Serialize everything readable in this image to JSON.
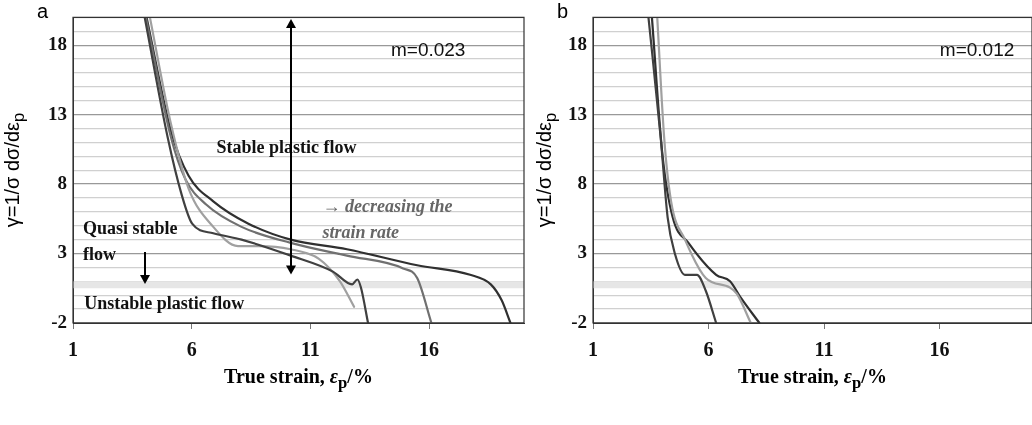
{
  "chart_data": [
    {
      "type": "line",
      "title": "a",
      "xlabel": "True strain, ε$_{p}$/%",
      "ylabel": "γ=1/σ dσ/dε$_{p}$",
      "xlim": [
        1,
        20
      ],
      "xticks": [
        1,
        6,
        11,
        16
      ],
      "ylim": [
        -2,
        20
      ],
      "yticks": [
        -2,
        {
          "value": -1,
          "label": null
        },
        {
          "value": 0,
          "label": null
        },
        {
          "value": 1,
          "label": null
        },
        {
          "value": 2,
          "label": null
        },
        3,
        {
          "value": 4,
          "label": null
        },
        {
          "value": 5,
          "label": null
        },
        {
          "value": 6,
          "label": null
        },
        {
          "value": 7,
          "label": null
        },
        8,
        {
          "value": 9,
          "label": null
        },
        {
          "value": 10,
          "label": null
        },
        {
          "value": 11,
          "label": null
        },
        {
          "value": 12,
          "label": null
        },
        13,
        {
          "value": 14,
          "label": null
        },
        {
          "value": 15,
          "label": null
        },
        {
          "value": 16,
          "label": null
        },
        {
          "value": 17,
          "label": null
        },
        18,
        {
          "value": 19,
          "label": null
        },
        {
          "value": 20,
          "label": null
        }
      ],
      "grid": "y",
      "legend": false,
      "marker": "none",
      "line_style": "solid",
      "bands": [
        {
          "axis": "y",
          "from": 0.5,
          "to": 1,
          "color": "#e6e6e6"
        }
      ],
      "series": [
        {
          "color": "#404040",
          "x": [
            4.02,
            4.99,
            5.58,
            6.02,
            6.91,
            8.1,
            10.17,
            11.95,
            12.76,
            12.98,
            13.13,
            13.43
          ],
          "values": [
            20,
            11.35,
            7.22,
            5.15,
            4.46,
            4.0,
            2.85,
            1.7,
            0.78,
            1.13,
            0.55,
            -2
          ]
        },
        {
          "color": "#a0a0a0",
          "x": [
            4.24,
            5.13,
            5.87,
            6.91,
            7.95,
            8.84,
            10.17,
            11.36,
            12.24,
            12.84
          ],
          "values": [
            20,
            12.3,
            7.68,
            4.92,
            3.54,
            3.54,
            3.31,
            2.62,
            1.01,
            -0.83
          ]
        },
        {
          "color": "#707070",
          "x": [
            4.07,
            5.13,
            5.73,
            6.61,
            8.1,
            10.17,
            12.54,
            14.91,
            15.5,
            16.1
          ],
          "values": [
            20,
            11.35,
            8.37,
            6.53,
            4.92,
            3.77,
            2.85,
            1.93,
            1.24,
            -2
          ]
        },
        {
          "color": "#303030",
          "x": [
            4.1,
            5.13,
            5.87,
            6.91,
            8.39,
            10.17,
            12.54,
            15.5,
            17.73,
            18.6,
            19.06,
            19.43
          ],
          "values": [
            20,
            11.8,
            8.6,
            6.76,
            5.15,
            4.0,
            3.31,
            2.16,
            1.47,
            0.78,
            -0.37,
            -2
          ]
        }
      ],
      "annotations": [
        "m=0.023",
        "Stable plastic flow",
        "→ decreasing the\nstrain rate",
        "Quasi stable\nflow",
        "Unstable plastic flow"
      ]
    },
    {
      "type": "line",
      "title": "b",
      "xlabel": "True strain, ε$_{p}$/%",
      "ylabel": "γ=1/σ dσ/dε$_{p}$",
      "xlim": [
        1,
        20
      ],
      "xticks": [
        1,
        6,
        11,
        16
      ],
      "ylim": [
        -2,
        20
      ],
      "yticks": [
        -2,
        {
          "value": -1,
          "label": null
        },
        {
          "value": 0,
          "label": null
        },
        {
          "value": 1,
          "label": null
        },
        {
          "value": 2,
          "label": null
        },
        3,
        {
          "value": 4,
          "label": null
        },
        {
          "value": 5,
          "label": null
        },
        {
          "value": 6,
          "label": null
        },
        {
          "value": 7,
          "label": null
        },
        8,
        {
          "value": 9,
          "label": null
        },
        {
          "value": 10,
          "label": null
        },
        {
          "value": 11,
          "label": null
        },
        {
          "value": 12,
          "label": null
        },
        13,
        {
          "value": 14,
          "label": null
        },
        {
          "value": 15,
          "label": null
        },
        {
          "value": 16,
          "label": null
        },
        {
          "value": 17,
          "label": null
        },
        18,
        {
          "value": 19,
          "label": null
        },
        {
          "value": 20,
          "label": null
        }
      ],
      "grid": "y",
      "legend": false,
      "marker": "none",
      "line_style": "solid",
      "bands": [
        {
          "axis": "y",
          "from": 0.5,
          "to": 1,
          "color": "#e6e6e6"
        }
      ],
      "series": [
        {
          "color": "#404040",
          "x": [
            3.4,
            3.93,
            4.23,
            4.53,
            4.98,
            5.5,
            5.88,
            6.33
          ],
          "values": [
            20,
            11.35,
            5.61,
            3.08,
            1.47,
            1.47,
            0.32,
            -2
          ]
        },
        {
          "color": "#a0a0a0",
          "x": [
            3.78,
            4.08,
            4.38,
            4.98,
            5.88,
            6.93,
            7.23,
            7.83
          ],
          "values": [
            20,
            11.35,
            6.76,
            4.0,
            1.24,
            0.55,
            0.09,
            -2
          ]
        },
        {
          "color": "#303030",
          "x": [
            3.55,
            4.0,
            4.45,
            5.13,
            6.33,
            6.93,
            7.38,
            8.2
          ],
          "values": [
            20,
            10.2,
            5.61,
            3.77,
            1.47,
            1.01,
            -0.14,
            -2
          ]
        }
      ],
      "annotations": [
        "m=0.012"
      ]
    }
  ]
}
